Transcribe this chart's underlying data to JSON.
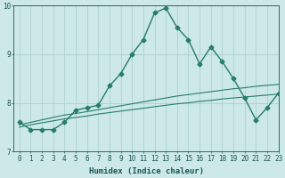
{
  "x": [
    0,
    1,
    2,
    3,
    4,
    5,
    6,
    7,
    8,
    9,
    10,
    11,
    12,
    13,
    14,
    15,
    16,
    17,
    18,
    19,
    20,
    21,
    22,
    23
  ],
  "y_main": [
    7.6,
    7.45,
    7.45,
    7.45,
    7.6,
    7.85,
    7.9,
    7.95,
    8.35,
    8.6,
    9.0,
    9.3,
    9.85,
    9.95,
    9.55,
    9.3,
    8.8,
    9.15,
    8.85,
    8.5,
    8.1,
    7.65,
    7.9,
    8.2
  ],
  "y_upper": [
    7.55,
    7.6,
    7.65,
    7.7,
    7.75,
    7.78,
    7.82,
    7.86,
    7.9,
    7.94,
    7.98,
    8.02,
    8.06,
    8.1,
    8.14,
    8.17,
    8.2,
    8.23,
    8.26,
    8.29,
    8.31,
    8.34,
    8.36,
    8.38
  ],
  "y_lower": [
    7.5,
    7.55,
    7.59,
    7.63,
    7.67,
    7.7,
    7.73,
    7.77,
    7.8,
    7.83,
    7.86,
    7.89,
    7.92,
    7.95,
    7.98,
    8.0,
    8.03,
    8.05,
    8.08,
    8.1,
    8.12,
    8.14,
    8.16,
    8.18
  ],
  "line_color": "#267d6a",
  "bg_color": "#cce8e8",
  "grid_color": "#a8cccc",
  "axis_color": "#1a5555",
  "xlim": [
    -0.5,
    23
  ],
  "ylim": [
    7,
    10
  ],
  "xlabel": "Humidex (Indice chaleur)",
  "xticks": [
    0,
    1,
    2,
    3,
    4,
    5,
    6,
    7,
    8,
    9,
    10,
    11,
    12,
    13,
    14,
    15,
    16,
    17,
    18,
    19,
    20,
    21,
    22,
    23
  ],
  "yticks": [
    7,
    8,
    9,
    10
  ],
  "marker": "D",
  "markersize": 2.5,
  "linewidth": 1.0,
  "ref_linewidth": 0.8,
  "fontsize_label": 6.5,
  "fontsize_tick": 5.5
}
